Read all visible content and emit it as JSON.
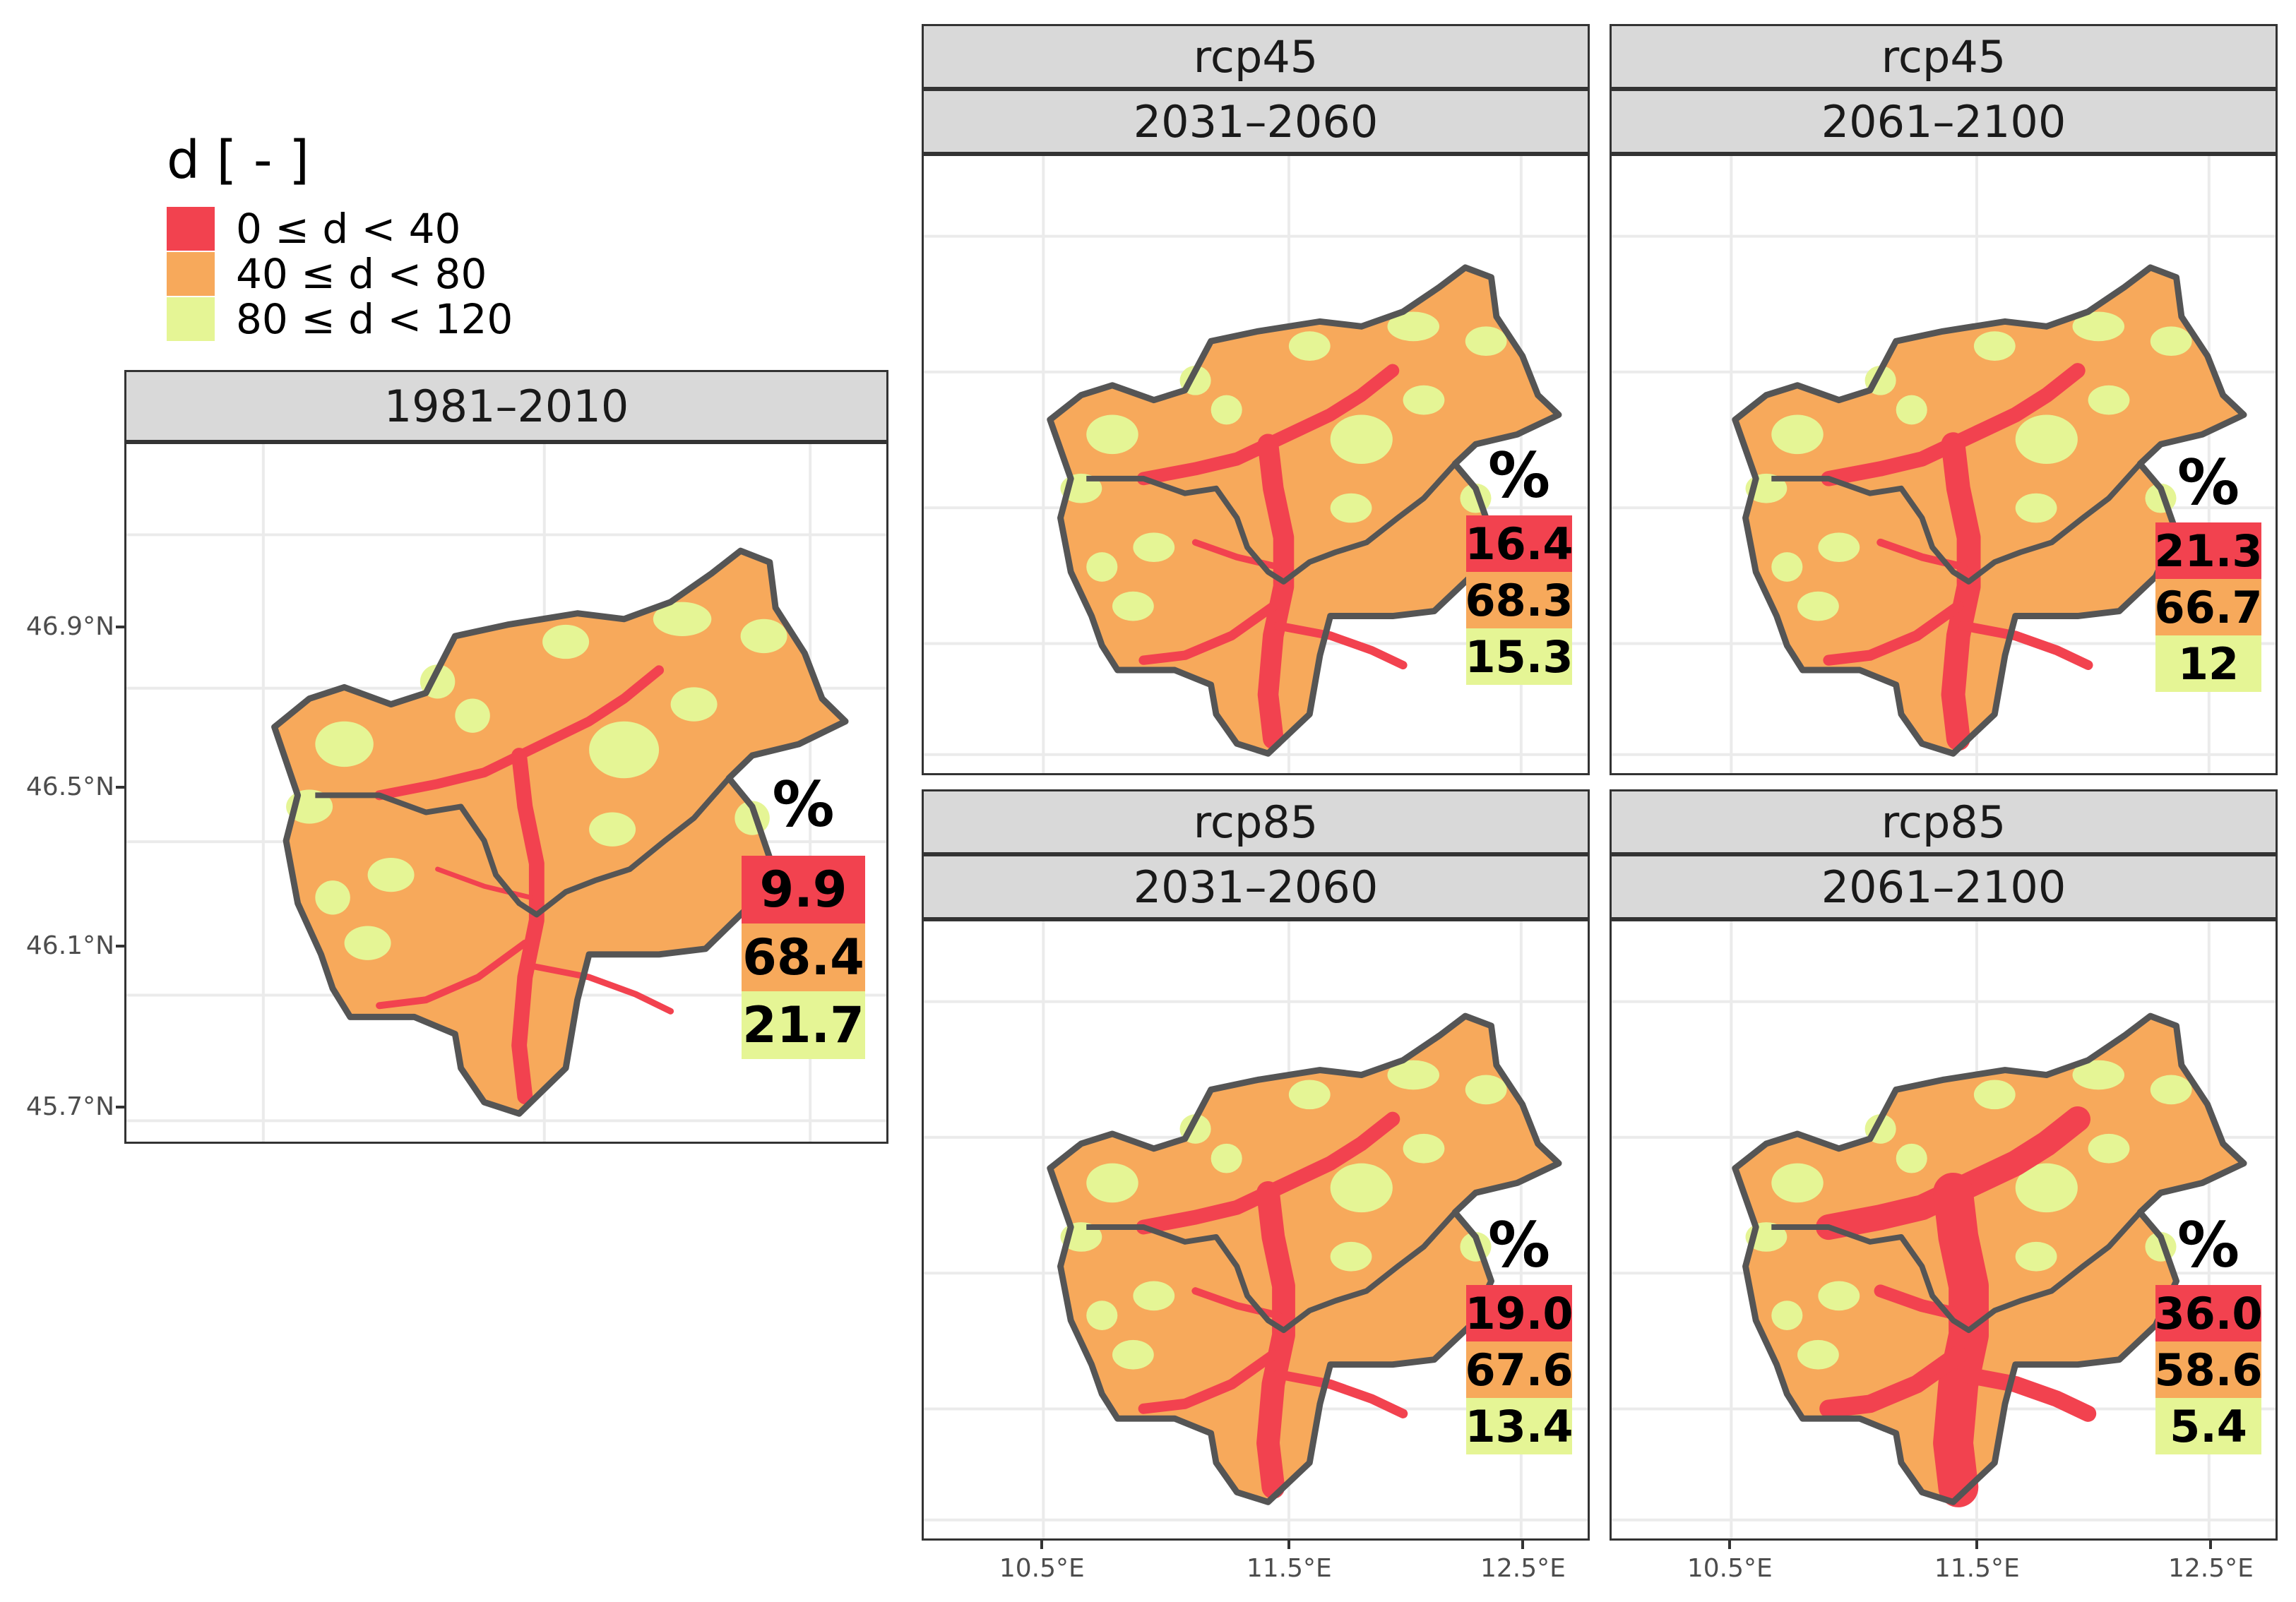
{
  "legend": {
    "title": "d [ - ]",
    "items": [
      {
        "label": "0 ≤ d < 40",
        "color": "#f2424f"
      },
      {
        "label": "40 ≤ d < 80",
        "color": "#f7a95b"
      },
      {
        "label": "80 ≤ d < 120",
        "color": "#e5f595"
      }
    ]
  },
  "colors": {
    "red": "#f2424f",
    "orange": "#f7a95b",
    "green": "#e5f595",
    "border": "#555555",
    "strip_bg": "#d9d9d9"
  },
  "axis": {
    "y_ticks": [
      "46.9°N",
      "46.5°N",
      "46.1°N",
      "45.7°N"
    ],
    "x_ticks": [
      "10.5°E",
      "11.5°E",
      "12.5°E"
    ]
  },
  "chart_data": {
    "type": "map",
    "variable": "d [ - ]",
    "percent_symbol": "%",
    "classes": [
      "0 ≤ d < 40",
      "40 ≤ d < 80",
      "80 ≤ d < 120"
    ],
    "panels": [
      {
        "scenario": "",
        "period": "1981–2010",
        "percentages": [
          "9.9",
          "68.4",
          "21.7"
        ]
      },
      {
        "scenario": "rcp45",
        "period": "2031–2060",
        "percentages": [
          "16.4",
          "68.3",
          "15.3"
        ]
      },
      {
        "scenario": "rcp45",
        "period": "2061–2100",
        "percentages": [
          "21.3",
          "66.7",
          "12"
        ]
      },
      {
        "scenario": "rcp85",
        "period": "2031–2060",
        "percentages": [
          "19.0",
          "67.6",
          "13.4"
        ]
      },
      {
        "scenario": "rcp85",
        "period": "2061–2100",
        "percentages": [
          "36.0",
          "58.6",
          "5.4"
        ]
      }
    ]
  }
}
